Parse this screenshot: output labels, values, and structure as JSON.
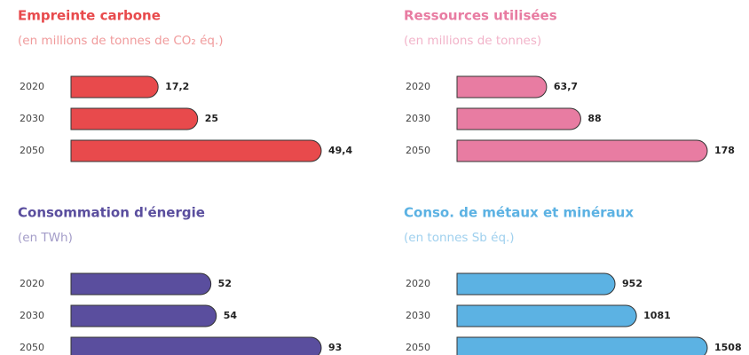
{
  "chart_data": [
    {
      "type": "bar",
      "title": "Empreinte carbone",
      "subtitle": "(en millions de tonnes de CO₂ éq.)",
      "color": "#e84a4c",
      "subtitle_color": "#f09a9b",
      "categories": [
        "2020",
        "2030",
        "2050"
      ],
      "values": [
        17.2,
        25,
        49.4
      ],
      "value_labels": [
        "17,2",
        "25",
        "49,4"
      ]
    },
    {
      "type": "bar",
      "title": "Ressources utilisées",
      "subtitle": "(en millions de tonnes)",
      "color": "#e87ca2",
      "subtitle_color": "#f2b3c9",
      "categories": [
        "2020",
        "2030",
        "2050"
      ],
      "values": [
        63.7,
        88,
        178
      ],
      "value_labels": [
        "63,7",
        "88",
        "178"
      ]
    },
    {
      "type": "bar",
      "title": "Consommation d'énergie",
      "subtitle": "(en TWh)",
      "color": "#5a4e9e",
      "subtitle_color": "#a39cc8",
      "categories": [
        "2020",
        "2030",
        "2050"
      ],
      "values": [
        52,
        54,
        93
      ],
      "value_labels": [
        "52",
        "54",
        "93"
      ]
    },
    {
      "type": "bar",
      "title": "Conso. de métaux et minéraux",
      "subtitle": "(en tonnes Sb éq.)",
      "color": "#5cb2e3",
      "subtitle_color": "#9fd0ee",
      "categories": [
        "2020",
        "2030",
        "2050"
      ],
      "values": [
        952,
        1081,
        1508
      ],
      "value_labels": [
        "952",
        "1081",
        "1508"
      ]
    }
  ]
}
